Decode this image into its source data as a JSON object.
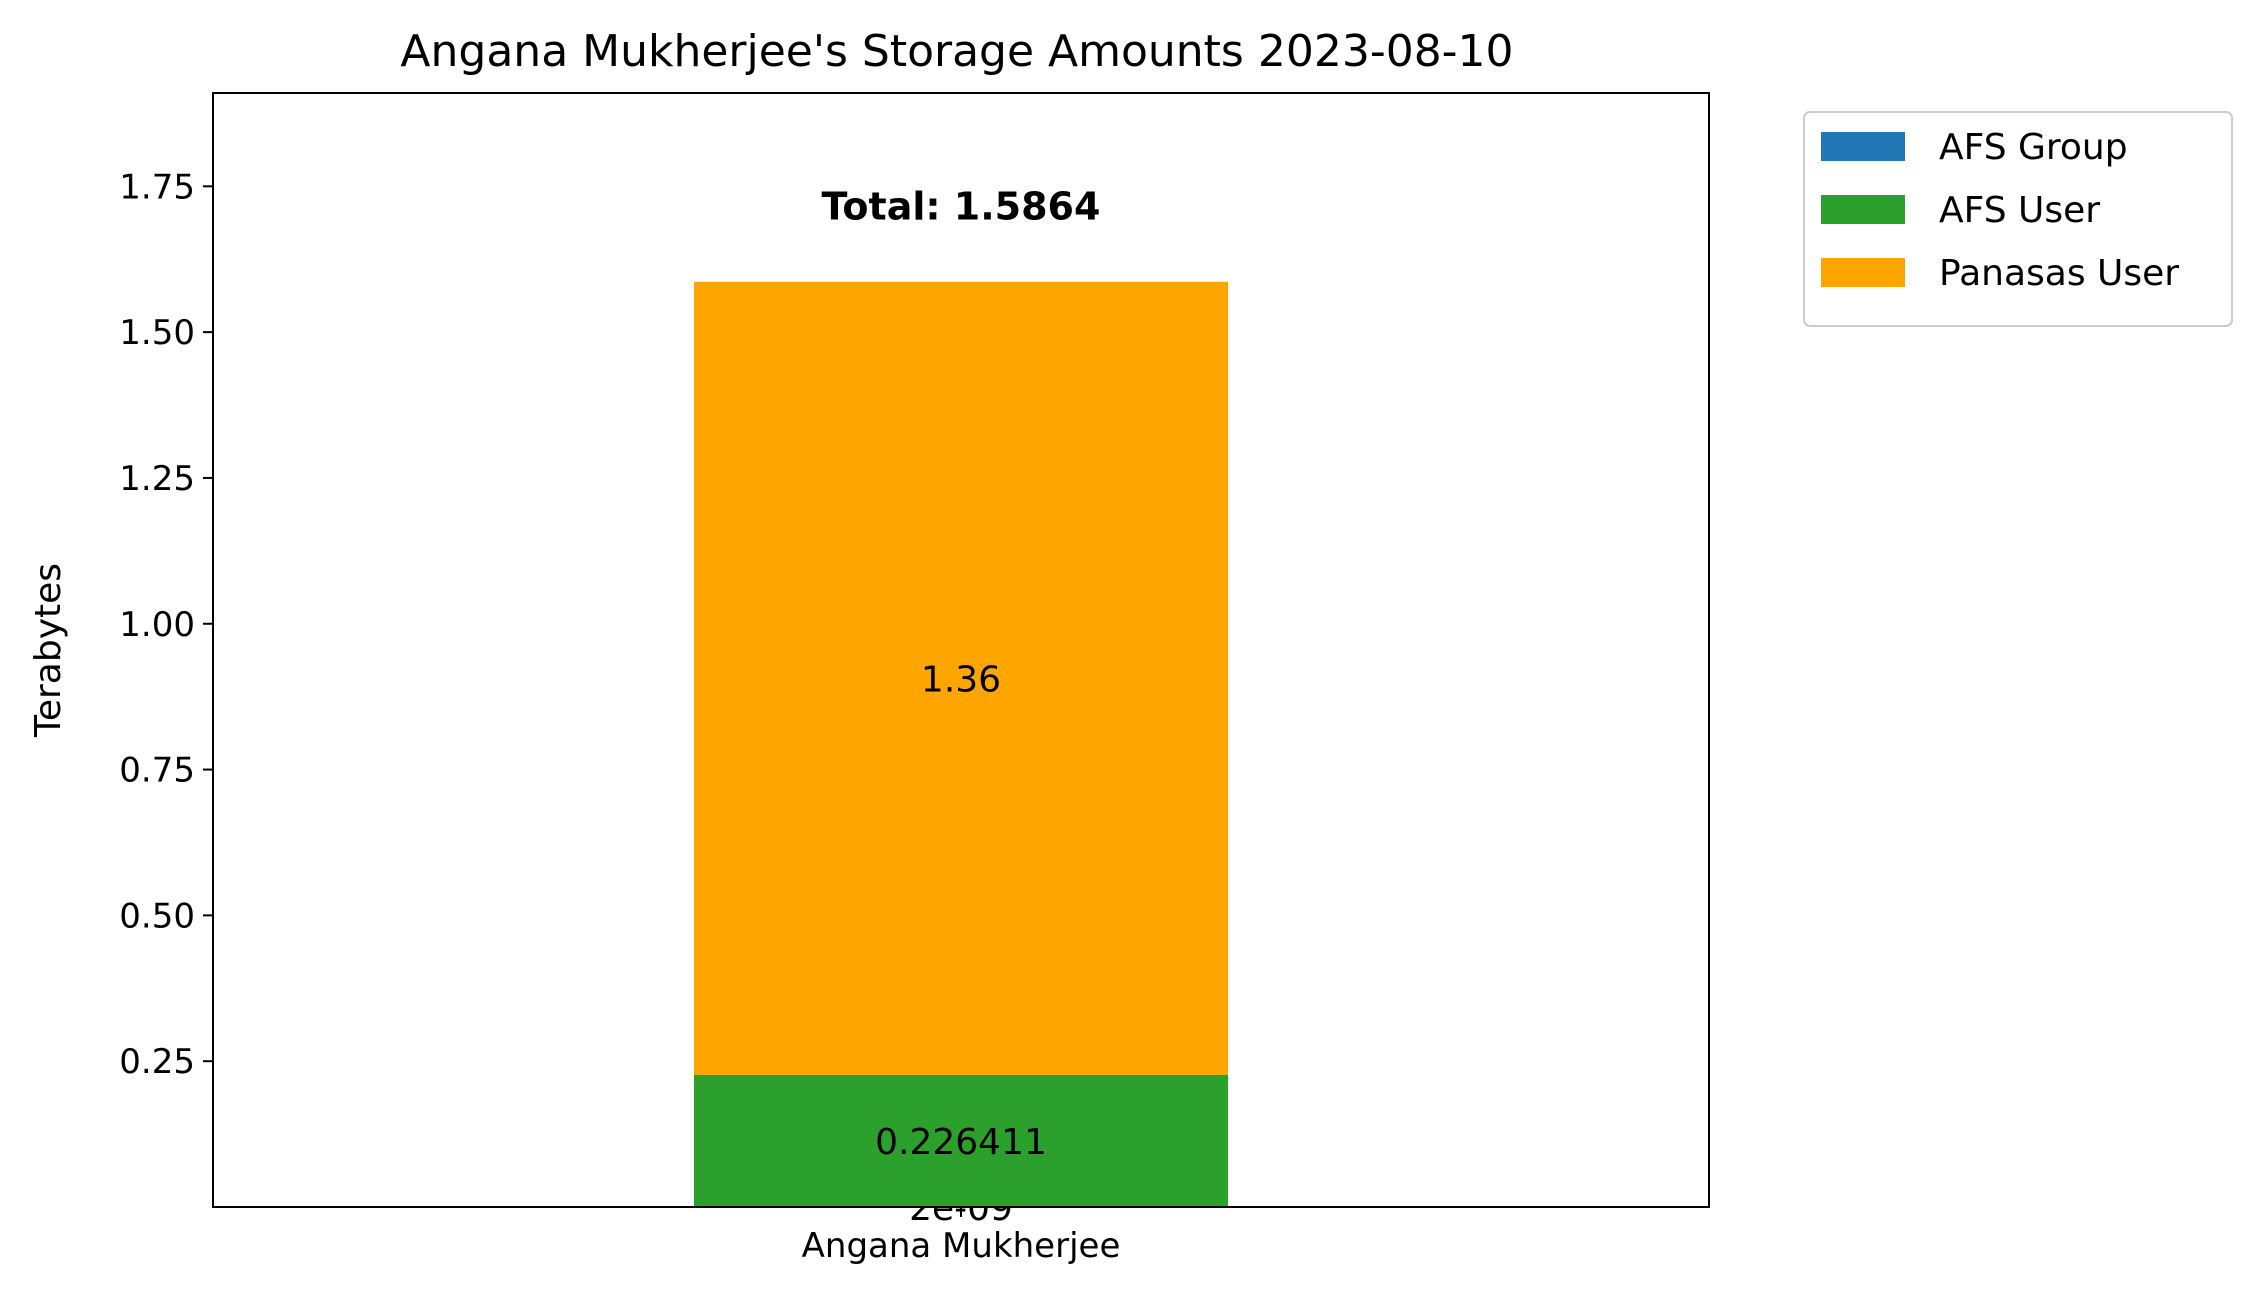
{
  "chart_data": {
    "type": "bar",
    "stacked": true,
    "title": "Angana Mukherjee's Storage Amounts 2023-08-10",
    "xlabel": "",
    "ylabel": "Terabytes",
    "ylim": [
      0,
      1.91
    ],
    "yticks": [
      "0.25",
      "0.50",
      "0.75",
      "1.00",
      "1.25",
      "1.50",
      "1.75"
    ],
    "categories": [
      "Angana Mukherjee"
    ],
    "series": [
      {
        "name": "AFS Group",
        "values": [
          2e-09
        ],
        "label": "2e-09",
        "color": "#1f77b4"
      },
      {
        "name": "AFS User",
        "values": [
          0.226411
        ],
        "label": "0.226411",
        "color": "#2ca02c"
      },
      {
        "name": "Panasas User",
        "values": [
          1.36
        ],
        "label": "1.36",
        "color": "#ffa500"
      }
    ],
    "total_label": "Total: 1.5864",
    "grid": false,
    "legend_position": "outside-upper-right"
  }
}
